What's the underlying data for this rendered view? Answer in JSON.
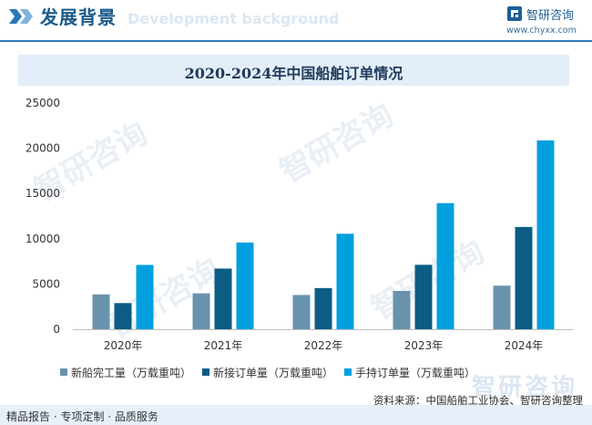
{
  "header": {
    "title": "发展背景",
    "subtitle_en": "Development background",
    "brand_name": "智研咨询",
    "brand_url": "www.chyxx.com"
  },
  "watermark": {
    "text": "智研咨询"
  },
  "legend": {
    "items": [
      {
        "label": "新船完工量（万载重吨）",
        "color": "#6993ad"
      },
      {
        "label": "新接订单量（万载重吨）",
        "color": "#0c5c85"
      },
      {
        "label": "手持订单量（万载重吨）",
        "color": "#00a0df"
      }
    ]
  },
  "source": "资料来源：中国船舶工业协会、智研咨询整理",
  "footer": {
    "text": "精品报告 · 专项定制 · 品质服务"
  },
  "chart_data": {
    "type": "bar",
    "title": "2020-2024年中国船舶订单情况",
    "xlabel": "",
    "ylabel": "",
    "categories": [
      "2020年",
      "2021年",
      "2022年",
      "2023年",
      "2024年"
    ],
    "ylim": [
      0,
      25000
    ],
    "yticks": [
      0,
      5000,
      10000,
      15000,
      20000,
      25000
    ],
    "ytick_labels": [
      "0",
      "5000",
      "10000",
      "15000",
      "20000",
      "25000"
    ],
    "grid": false,
    "legend_position": "bottom",
    "series": [
      {
        "name": "新船完工量（万载重吨）",
        "color": "#6993ad",
        "values": [
          3853,
          3970,
          3786,
          4232,
          4818
        ]
      },
      {
        "name": "新接订单量（万载重吨）",
        "color": "#0c5c85",
        "values": [
          2893,
          6707,
          4552,
          7120,
          11305
        ]
      },
      {
        "name": "手持订单量（万载重吨）",
        "color": "#00a0df",
        "values": [
          7111,
          9584,
          10557,
          13939,
          20872
        ]
      }
    ]
  }
}
